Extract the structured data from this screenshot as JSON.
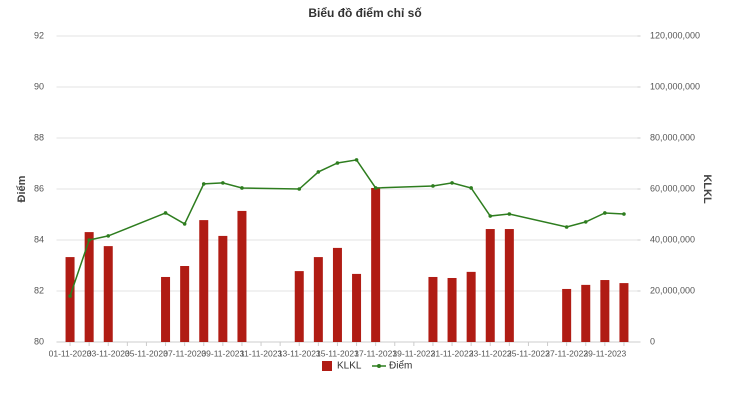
{
  "chart_data": {
    "type": "bar-line",
    "title": "Biểu đồ điểm chỉ số",
    "y_label": "Điểm",
    "y2_label": "KLKL",
    "categories": [
      "01-11-2023",
      null,
      "03-11-2023",
      null,
      "05-11-2023",
      null,
      "07-11-2023",
      null,
      "09-11-2023",
      null,
      "11-11-2023",
      null,
      "13-11-2023",
      null,
      "15-11-2023",
      null,
      "17-11-2023",
      null,
      "19-11-2023",
      null,
      "21-11-2023",
      null,
      "23-11-2023",
      null,
      "25-11-2023",
      null,
      "27-11-2023",
      null,
      "29-11-2023",
      null
    ],
    "series": [
      {
        "name": "KLKL",
        "type": "bar",
        "axis": "y2",
        "color": "#b01c14",
        "values": [
          33300000,
          43100000,
          37600000,
          null,
          null,
          25500000,
          29800000,
          47800000,
          41600000,
          51400000,
          null,
          null,
          27800000,
          33300000,
          36900000,
          26700000,
          60400000,
          null,
          null,
          25500000,
          25100000,
          27500000,
          44300000,
          44300000,
          null,
          null,
          20800000,
          22400000,
          24300000,
          23100000
        ]
      },
      {
        "name": "Điểm",
        "type": "line",
        "axis": "y",
        "color": "#2e7d1f",
        "connect_gaps": true,
        "values": [
          81.8,
          84.0,
          84.16,
          null,
          null,
          85.06,
          84.63,
          86.2,
          86.24,
          86.04,
          null,
          null,
          86.0,
          86.67,
          87.02,
          87.14,
          86.04,
          null,
          null,
          86.12,
          86.24,
          86.04,
          84.94,
          85.02,
          null,
          null,
          84.51,
          84.71,
          85.06,
          85.02
        ]
      }
    ],
    "ylim": [
      80,
      92
    ],
    "yticks": [
      80,
      82,
      84,
      86,
      88,
      90,
      92
    ],
    "y2lim": [
      0,
      120000000
    ],
    "y2ticks": [
      0,
      {
        "value": 20000000,
        "label": "20,000,000"
      },
      {
        "value": 40000000,
        "label": "40,000,000"
      },
      {
        "value": 60000000,
        "label": "60,000,000"
      },
      {
        "value": 80000000,
        "label": "80,000,000"
      },
      {
        "value": 100000000,
        "label": "100,000,000"
      },
      {
        "value": 120000000,
        "label": "120,000,000"
      }
    ],
    "grid": true,
    "legend": "bottom"
  }
}
